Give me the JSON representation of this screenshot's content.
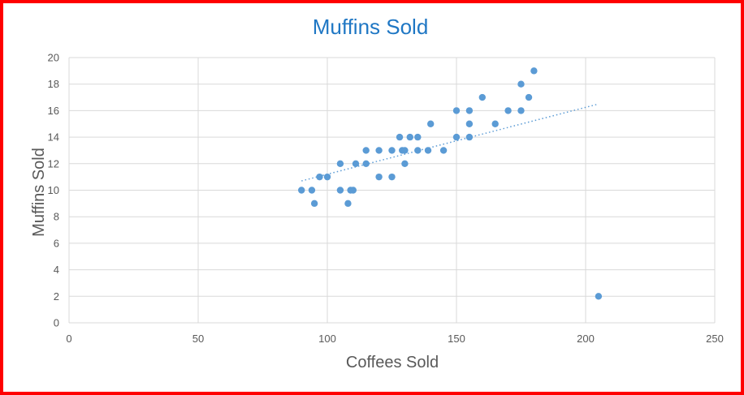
{
  "chart_data": {
    "type": "scatter",
    "title": "Muffins Sold",
    "xlabel": "Coffees Sold",
    "ylabel": "Muffins Sold",
    "xlim": [
      0,
      250
    ],
    "ylim": [
      0,
      20
    ],
    "x_ticks": [
      0,
      50,
      100,
      150,
      200,
      250
    ],
    "y_ticks": [
      0,
      2,
      4,
      6,
      8,
      10,
      12,
      14,
      16,
      18,
      20
    ],
    "grid": true,
    "legend": "none",
    "series": [
      {
        "marker_color": "#5b9bd5",
        "points": [
          [
            90,
            10
          ],
          [
            94,
            10
          ],
          [
            95,
            9
          ],
          [
            97,
            11
          ],
          [
            100,
            11
          ],
          [
            105,
            10
          ],
          [
            105,
            12
          ],
          [
            108,
            9
          ],
          [
            109,
            10
          ],
          [
            110,
            10
          ],
          [
            111,
            12
          ],
          [
            115,
            12
          ],
          [
            115,
            13
          ],
          [
            120,
            11
          ],
          [
            120,
            13
          ],
          [
            125,
            11
          ],
          [
            125,
            13
          ],
          [
            128,
            14
          ],
          [
            129,
            13
          ],
          [
            130,
            12
          ],
          [
            130,
            13
          ],
          [
            132,
            14
          ],
          [
            135,
            13
          ],
          [
            135,
            14
          ],
          [
            139,
            13
          ],
          [
            140,
            15
          ],
          [
            145,
            13
          ],
          [
            150,
            14
          ],
          [
            150,
            16
          ],
          [
            155,
            14
          ],
          [
            155,
            15
          ],
          [
            155,
            16
          ],
          [
            160,
            17
          ],
          [
            165,
            15
          ],
          [
            170,
            16
          ],
          [
            175,
            16
          ],
          [
            175,
            18
          ],
          [
            178,
            17
          ],
          [
            180,
            19
          ],
          [
            205,
            2
          ]
        ]
      }
    ],
    "trendline": {
      "style": "dotted",
      "color": "#5b9bd5",
      "x_range": [
        90,
        205
      ],
      "y_range": [
        10.7,
        16.5
      ]
    }
  },
  "colors": {
    "border": "#ff0000",
    "title": "#1f77c4",
    "gridline": "#d9d9d9",
    "text": "#595959"
  }
}
